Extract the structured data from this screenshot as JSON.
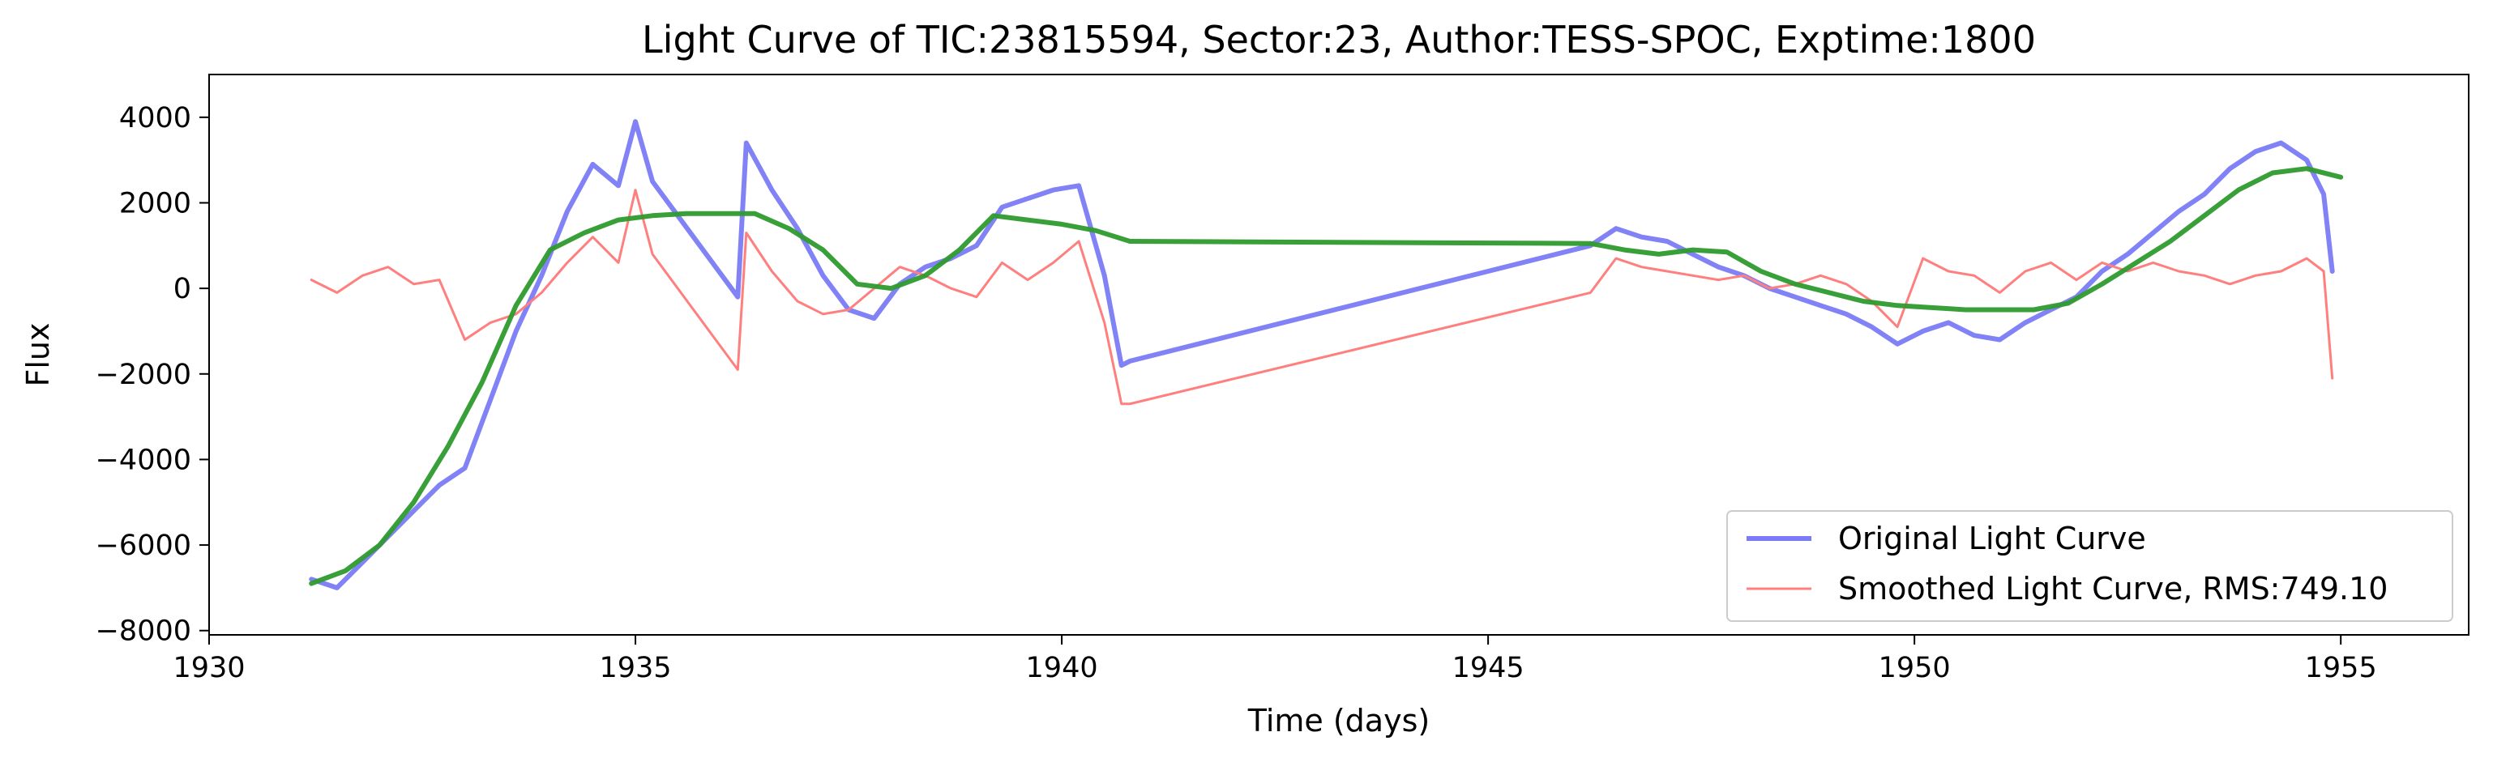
{
  "chart_data": {
    "type": "line",
    "title": "Light Curve of TIC:23815594, Sector:23, Author:TESS-SPOC, Exptime:1800",
    "xlabel": "Time (days)",
    "ylabel": "Flux",
    "xlim": [
      1930,
      1956.5
    ],
    "ylim": [
      -8100,
      5000
    ],
    "xticks": [
      1930,
      1935,
      1940,
      1945,
      1950,
      1955
    ],
    "yticks": [
      -8000,
      -6000,
      -4000,
      -2000,
      0,
      2000,
      4000
    ],
    "grid": false,
    "legend_position": "lower-right",
    "series": [
      {
        "name": "Original Light Curve",
        "color": "#7b7bf7",
        "x": [
          1931.2,
          1931.5,
          1931.8,
          1932.1,
          1932.4,
          1932.7,
          1933.0,
          1933.3,
          1933.6,
          1933.9,
          1934.2,
          1934.5,
          1934.8,
          1935.0,
          1935.2,
          1936.2,
          1936.3,
          1936.6,
          1936.9,
          1937.2,
          1937.5,
          1937.8,
          1938.1,
          1938.4,
          1938.7,
          1939.0,
          1939.3,
          1939.6,
          1939.9,
          1940.2,
          1940.5,
          1940.7,
          1940.8,
          1946.2,
          1946.5,
          1946.8,
          1947.1,
          1947.4,
          1947.7,
          1948.0,
          1948.3,
          1948.6,
          1948.9,
          1949.2,
          1949.5,
          1949.8,
          1950.1,
          1950.4,
          1950.7,
          1951.0,
          1951.3,
          1951.6,
          1951.9,
          1952.2,
          1952.5,
          1952.8,
          1953.1,
          1953.4,
          1953.7,
          1954.0,
          1954.3,
          1954.6,
          1954.8,
          1954.9
        ],
        "y": [
          -6800,
          -7000,
          -6400,
          -5800,
          -5200,
          -4600,
          -4200,
          -2600,
          -1000,
          300,
          1800,
          2900,
          2400,
          3900,
          2500,
          -200,
          3400,
          2300,
          1400,
          300,
          -500,
          -700,
          100,
          500,
          700,
          1000,
          1900,
          2100,
          2300,
          2400,
          300,
          -1800,
          -1700,
          1000,
          1400,
          1200,
          1100,
          800,
          500,
          300,
          0,
          -200,
          -400,
          -600,
          -900,
          -1300,
          -1000,
          -800,
          -1100,
          -1200,
          -800,
          -500,
          -200,
          400,
          800,
          1300,
          1800,
          2200,
          2800,
          3200,
          3400,
          3000,
          2200,
          400
        ]
      },
      {
        "name": "Smoothed Light Curve, RMS:749.10",
        "color": "#ff7f7f",
        "x": [
          1931.2,
          1931.5,
          1931.8,
          1932.1,
          1932.4,
          1932.7,
          1933.0,
          1933.3,
          1933.6,
          1933.9,
          1934.2,
          1934.5,
          1934.8,
          1935.0,
          1935.2,
          1936.2,
          1936.3,
          1936.6,
          1936.9,
          1937.2,
          1937.5,
          1937.8,
          1938.1,
          1938.4,
          1938.7,
          1939.0,
          1939.3,
          1939.6,
          1939.9,
          1940.2,
          1940.5,
          1940.7,
          1940.8,
          1946.2,
          1946.5,
          1946.8,
          1947.1,
          1947.4,
          1947.7,
          1948.0,
          1948.3,
          1948.6,
          1948.9,
          1949.2,
          1949.5,
          1949.8,
          1950.1,
          1950.4,
          1950.7,
          1951.0,
          1951.3,
          1951.6,
          1951.9,
          1952.2,
          1952.5,
          1952.8,
          1953.1,
          1953.4,
          1953.7,
          1954.0,
          1954.3,
          1954.6,
          1954.8,
          1954.9
        ],
        "y": [
          200,
          -100,
          300,
          500,
          100,
          200,
          -1200,
          -800,
          -600,
          -100,
          600,
          1200,
          600,
          2300,
          800,
          -1900,
          1300,
          400,
          -300,
          -600,
          -500,
          0,
          500,
          300,
          0,
          -200,
          600,
          200,
          600,
          1100,
          -800,
          -2700,
          -2700,
          -100,
          700,
          500,
          400,
          300,
          200,
          300,
          0,
          100,
          300,
          100,
          -300,
          -900,
          700,
          400,
          300,
          -100,
          400,
          600,
          200,
          600,
          400,
          600,
          400,
          300,
          100,
          300,
          400,
          700,
          400,
          -2100
        ]
      },
      {
        "name": "",
        "color": "#2e9a2e",
        "x": [
          1931.2,
          1931.6,
          1932.0,
          1932.4,
          1932.8,
          1933.2,
          1933.6,
          1934.0,
          1934.4,
          1934.8,
          1935.2,
          1935.6,
          1936.0,
          1936.4,
          1936.8,
          1937.2,
          1937.6,
          1938.0,
          1938.4,
          1938.8,
          1939.2,
          1939.6,
          1940.0,
          1940.4,
          1940.8,
          1946.2,
          1946.6,
          1947.0,
          1947.4,
          1947.8,
          1948.2,
          1948.6,
          1949.0,
          1949.4,
          1949.8,
          1950.2,
          1950.6,
          1951.0,
          1951.4,
          1951.8,
          1952.2,
          1952.6,
          1953.0,
          1953.4,
          1953.8,
          1954.2,
          1954.6,
          1955.0
        ],
        "y": [
          -6900,
          -6600,
          -6000,
          -5000,
          -3700,
          -2200,
          -400,
          900,
          1300,
          1600,
          1700,
          1750,
          1750,
          1750,
          1400,
          900,
          100,
          0,
          300,
          900,
          1700,
          1600,
          1500,
          1350,
          1100,
          1050,
          900,
          800,
          900,
          850,
          400,
          100,
          -100,
          -300,
          -400,
          -450,
          -500,
          -500,
          -500,
          -350,
          100,
          600,
          1100,
          1700,
          2300,
          2700,
          2800,
          2600
        ]
      }
    ]
  }
}
